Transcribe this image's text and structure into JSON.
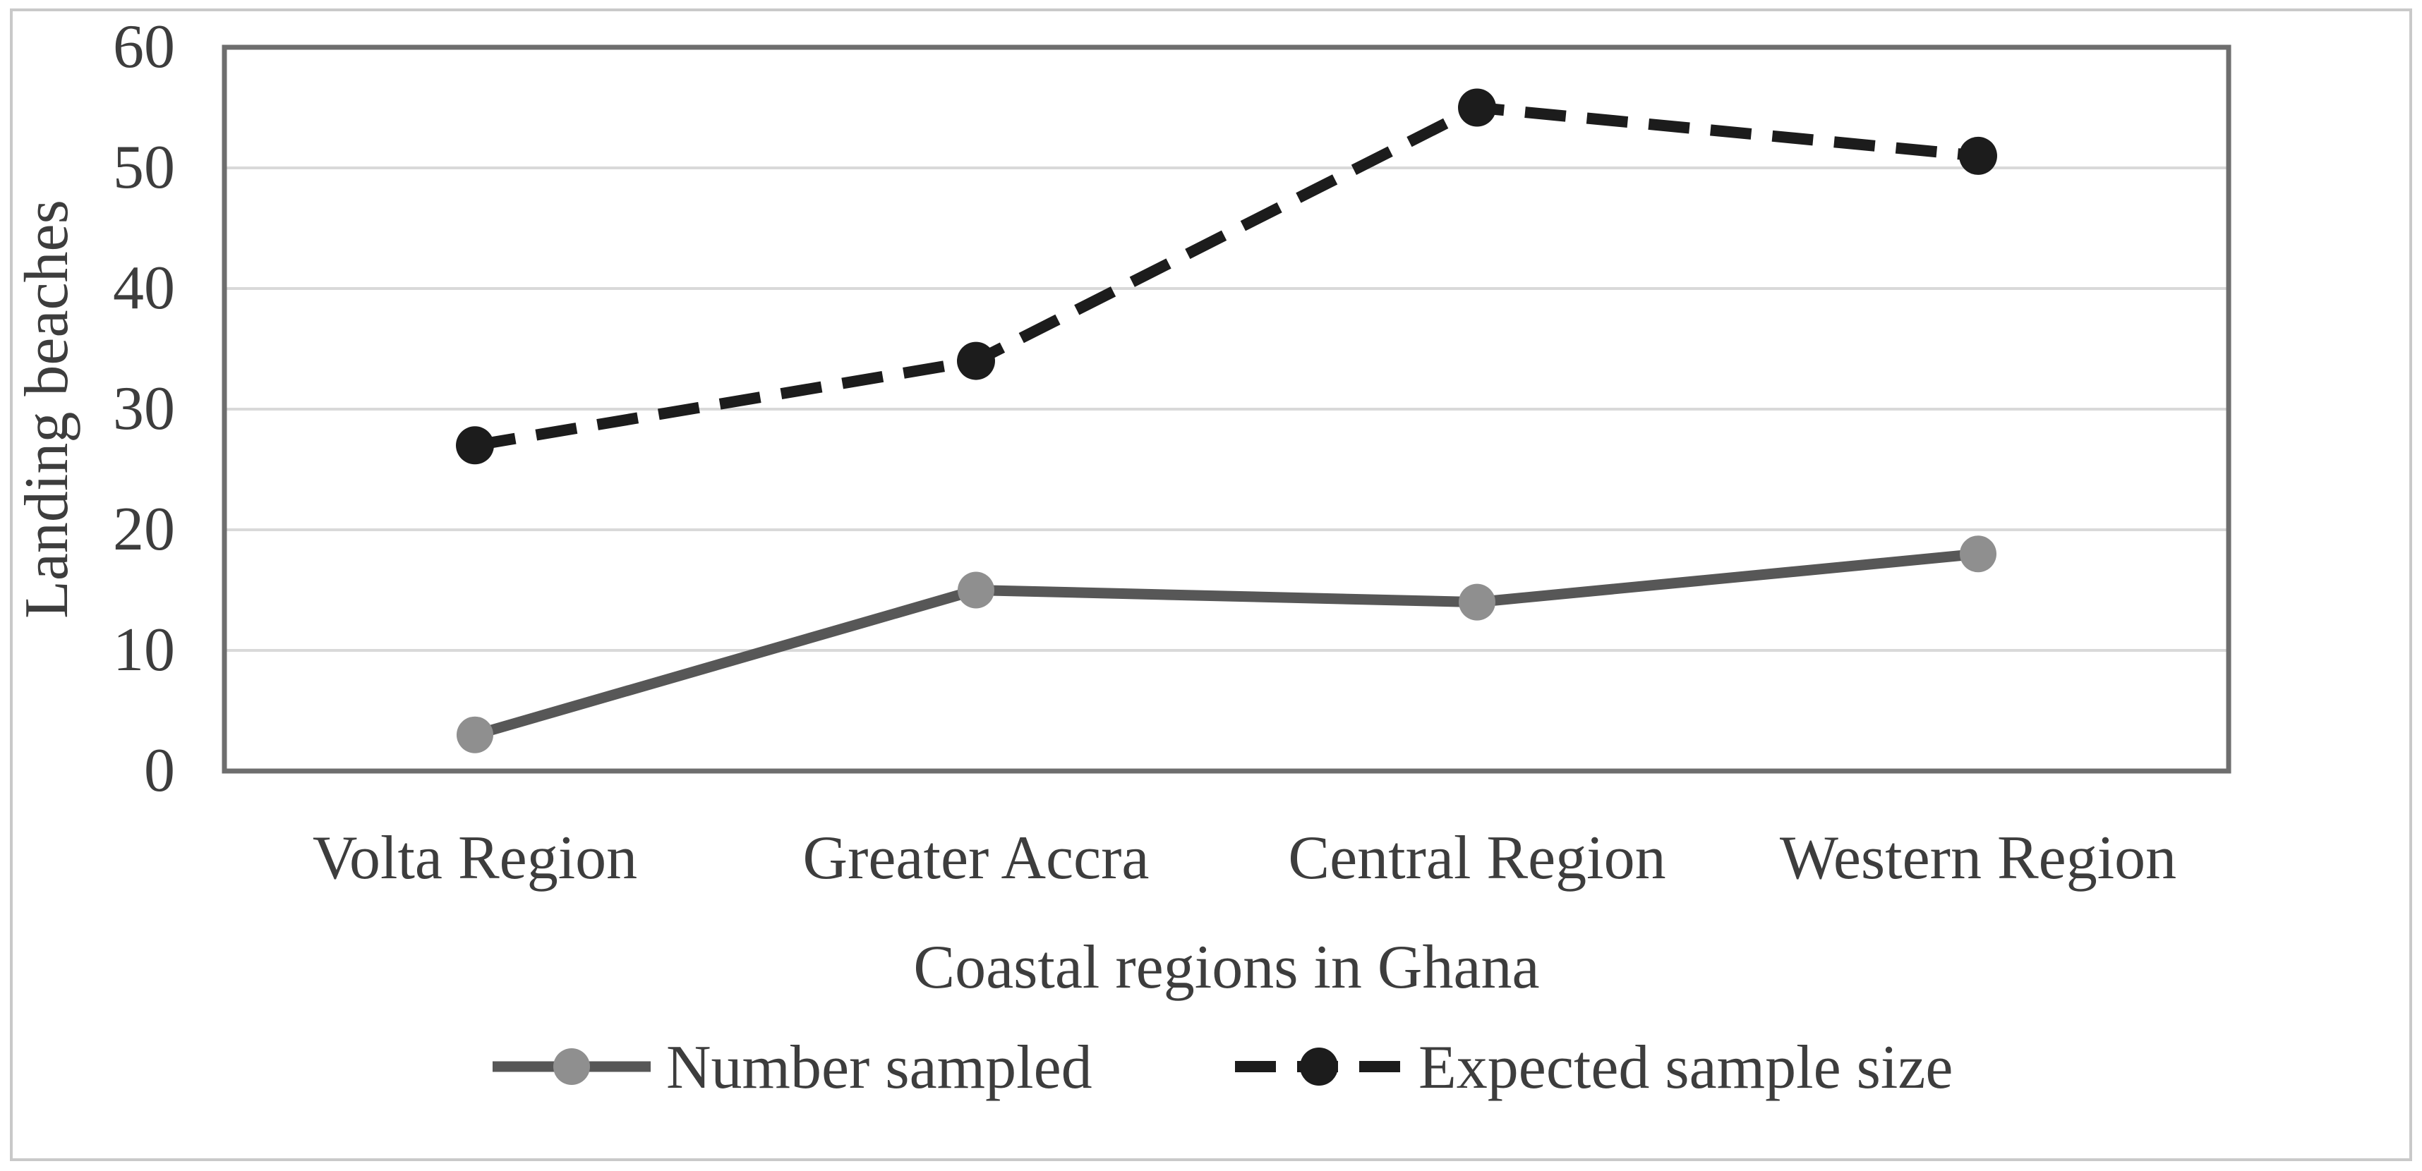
{
  "chart_data": {
    "type": "line",
    "title": "",
    "xlabel": "Coastal regions in Ghana",
    "ylabel": "Landing beaches",
    "categories": [
      "Volta Region",
      "Greater Accra",
      "Central Region",
      "Western Region"
    ],
    "series": [
      {
        "name": "Number sampled",
        "values": [
          3,
          15,
          14,
          18
        ],
        "line_style": "solid",
        "color": "#575757",
        "marker_color": "#8f8f8f"
      },
      {
        "name": "Expected sample size",
        "values": [
          27,
          34,
          55,
          51
        ],
        "line_style": "dashed",
        "color": "#1c1c1c",
        "marker_color": "#1c1c1c"
      }
    ],
    "ylim": [
      0,
      60
    ],
    "yticks": [
      0,
      10,
      20,
      30,
      40,
      50,
      60
    ],
    "grid": true,
    "legend_position": "bottom",
    "colors": {
      "background": "#ffffff",
      "gridline": "#d9d9d9",
      "plot_border": "#6e6e6e",
      "figure_border": "#c9c9c9",
      "text": "#3d3d3d"
    }
  }
}
